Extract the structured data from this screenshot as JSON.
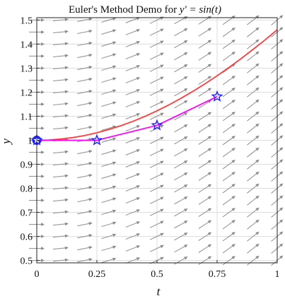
{
  "chart_data": {
    "type": "line",
    "title": {
      "prefix": "Euler's Method Demo for ",
      "equation": "y' = sin(t)"
    },
    "xlabel": "t",
    "ylabel": "y",
    "xlim": [
      0,
      1
    ],
    "ylim": [
      0.49,
      1.51
    ],
    "xticks": [
      0,
      0.25,
      0.5,
      0.75,
      1
    ],
    "xtick_labels": [
      "0",
      "0.25",
      "0.5",
      "0.75",
      "1"
    ],
    "yticks": [
      0.5,
      0.6,
      0.7,
      0.8,
      0.9,
      1.0,
      1.1,
      1.2,
      1.3,
      1.4,
      1.5
    ],
    "ytick_labels": [
      "0.5",
      "0.6",
      "0.7",
      "0.8",
      "0.9",
      "1",
      "1.1",
      "1.2",
      "1.3",
      "1.4",
      "1.5"
    ],
    "grid": true,
    "series": [
      {
        "role": "exact",
        "color": "#ff3b3b",
        "x": [
          0,
          0.05,
          0.1,
          0.15,
          0.2,
          0.25,
          0.3,
          0.35,
          0.4,
          0.45,
          0.5,
          0.55,
          0.6,
          0.65,
          0.7,
          0.75,
          0.8,
          0.85,
          0.9,
          0.95,
          1.0
        ],
        "y": [
          1.0,
          1.0012,
          1.005,
          1.0112,
          1.0199,
          1.0311,
          1.0447,
          1.0606,
          1.0789,
          1.0995,
          1.1224,
          1.1474,
          1.1747,
          1.2039,
          1.2352,
          1.2683,
          1.3033,
          1.3399,
          1.3784,
          1.418,
          1.4597
        ]
      },
      {
        "role": "euler",
        "color": "#ff00ff",
        "marker_color": "#2020ff",
        "x": [
          0,
          0.25,
          0.5,
          0.75
        ],
        "y": [
          1.0,
          1.0,
          1.0619,
          1.1817
        ]
      }
    ],
    "slope_field": {
      "color": "#8c8c8c",
      "t_values": [
        0,
        0.1,
        0.2,
        0.3,
        0.4,
        0.5,
        0.6,
        0.7,
        0.8,
        0.9,
        1.0
      ],
      "y_values": [
        0.5,
        0.55,
        0.6,
        0.65,
        0.7,
        0.75,
        0.8,
        0.85,
        0.9,
        0.95,
        1.0,
        1.05,
        1.1,
        1.15,
        1.2,
        1.25,
        1.3,
        1.35,
        1.4,
        1.45,
        1.5
      ]
    }
  }
}
